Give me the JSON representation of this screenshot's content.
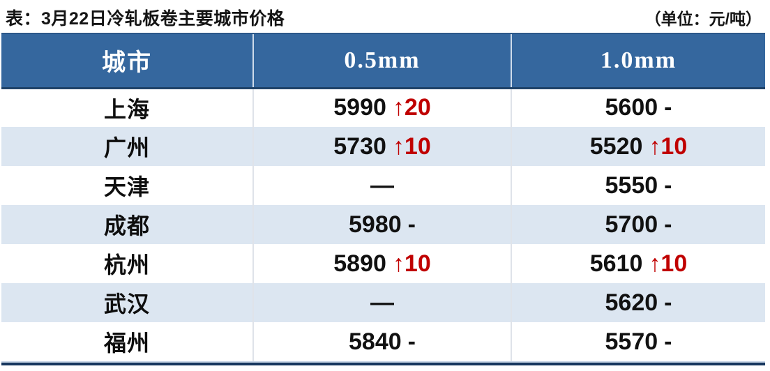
{
  "title": "表：3月22日冷轧板卷主要城市价格",
  "unit_label": "（单位：元/吨）",
  "header": {
    "city": "城市",
    "col05": "0.5mm",
    "col10": "1.0mm"
  },
  "rows": [
    {
      "city": "上海",
      "cells": [
        {
          "price": "5990",
          "change": "↑20"
        },
        {
          "price": "5600",
          "change": "-"
        }
      ]
    },
    {
      "city": "广州",
      "cells": [
        {
          "price": "5730",
          "change": "↑10"
        },
        {
          "price": "5520",
          "change": "↑10"
        }
      ]
    },
    {
      "city": "天津",
      "cells": [
        {
          "price": "—",
          "change": ""
        },
        {
          "price": "5550",
          "change": "-"
        }
      ]
    },
    {
      "city": "成都",
      "cells": [
        {
          "price": "5980",
          "change": "-"
        },
        {
          "price": "5700",
          "change": "-"
        }
      ]
    },
    {
      "city": "杭州",
      "cells": [
        {
          "price": "5890",
          "change": "↑10"
        },
        {
          "price": "5610",
          "change": "↑10"
        }
      ]
    },
    {
      "city": "武汉",
      "cells": [
        {
          "price": "—",
          "change": ""
        },
        {
          "price": "5620",
          "change": "-"
        }
      ]
    },
    {
      "city": "福州",
      "cells": [
        {
          "price": "5840",
          "change": "-"
        },
        {
          "price": "5570",
          "change": "-"
        }
      ]
    }
  ],
  "colors": {
    "header_bg": "#35679e",
    "row_alt_bg": "#dce6f1",
    "change_up": "#c00000",
    "bottom_bar": "#17375e"
  },
  "chart_data": {
    "type": "table",
    "title": "3月22日冷轧板卷主要城市价格",
    "unit": "元/吨",
    "columns": [
      "城市",
      "0.5mm",
      "1.0mm"
    ],
    "rows": [
      [
        "上海",
        "5990 ↑20",
        "5600 -"
      ],
      [
        "广州",
        "5730 ↑10",
        "5520 ↑10"
      ],
      [
        "天津",
        "—",
        "5550 -"
      ],
      [
        "成都",
        "5980 -",
        "5700 -"
      ],
      [
        "杭州",
        "5890 ↑10",
        "5610 ↑10"
      ],
      [
        "武汉",
        "—",
        "5620 -"
      ],
      [
        "福州",
        "5840 -",
        "5570 -"
      ]
    ]
  }
}
